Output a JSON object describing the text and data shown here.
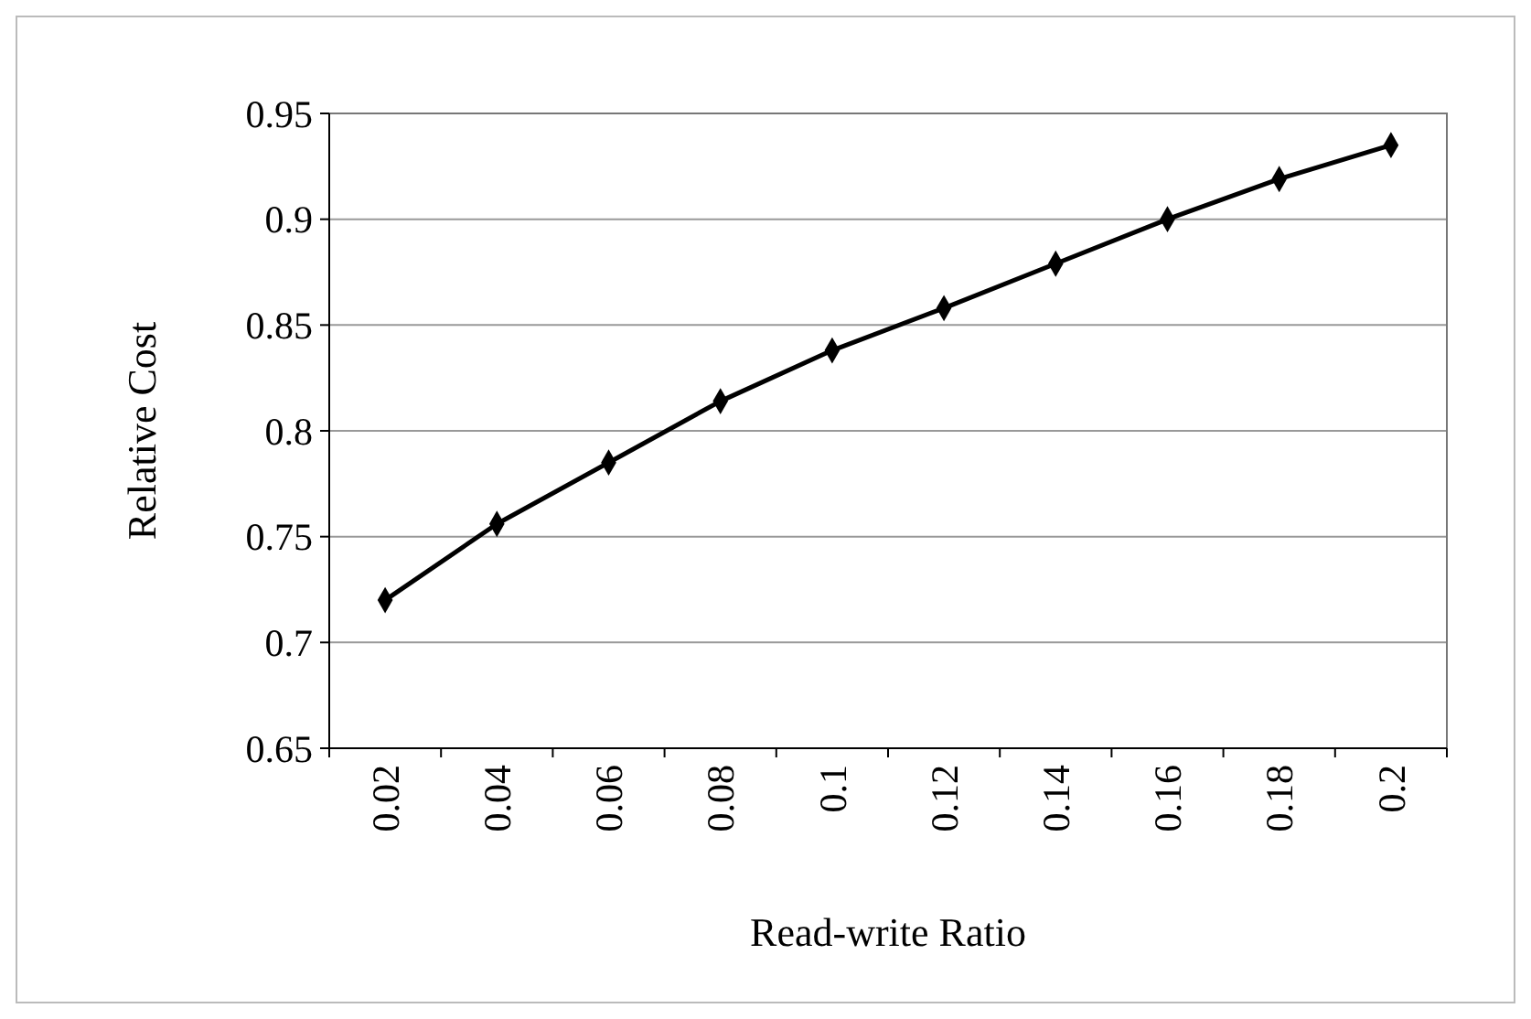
{
  "chart_data": {
    "type": "line",
    "xlabel": "Read-write Ratio",
    "ylabel": "Relative Cost",
    "categories": [
      "0.02",
      "0.04",
      "0.06",
      "0.08",
      "0.1",
      "0.12",
      "0.14",
      "0.16",
      "0.18",
      "0.2"
    ],
    "series": [
      {
        "color": "#000000",
        "values": [
          0.72,
          0.756,
          0.785,
          0.814,
          0.838,
          0.858,
          0.879,
          0.9,
          0.919,
          0.935
        ]
      }
    ],
    "ylim": [
      0.65,
      0.95
    ],
    "yticks": [
      0.65,
      0.7,
      0.75,
      0.8,
      0.85,
      0.9,
      0.95
    ],
    "grid": "y",
    "marker": "diamond",
    "line_style": "solid"
  }
}
